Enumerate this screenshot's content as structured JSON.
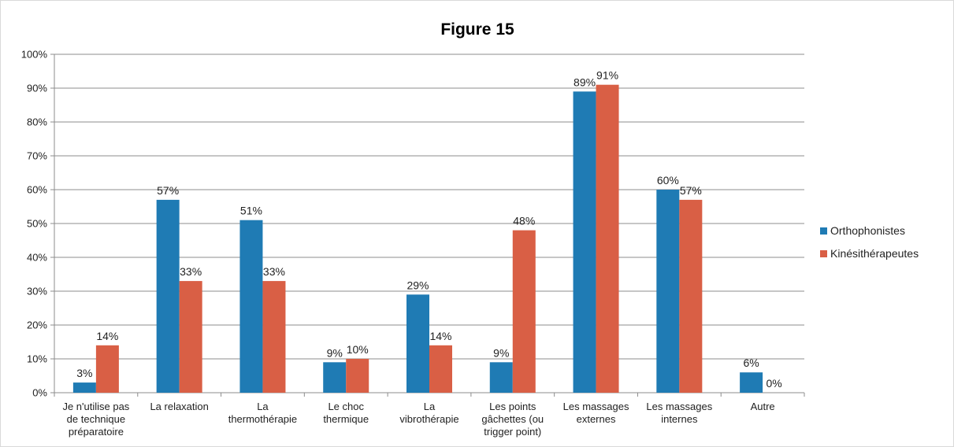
{
  "chart_data": {
    "type": "bar",
    "title": "Figure 15",
    "categories": [
      [
        "Je n'utilise pas",
        "de technique",
        "préparatoire"
      ],
      [
        "La relaxation"
      ],
      [
        "La",
        "thermothérapie"
      ],
      [
        "Le choc",
        "thermique"
      ],
      [
        "La",
        "vibrothérapie"
      ],
      [
        "Les points",
        "gâchettes (ou",
        "trigger point)"
      ],
      [
        "Les massages",
        "externes"
      ],
      [
        "Les massages",
        "internes"
      ],
      [
        "Autre"
      ]
    ],
    "series": [
      {
        "name": "Orthophonistes",
        "color": "#1f7bb4",
        "values": [
          3,
          57,
          51,
          9,
          29,
          9,
          89,
          60,
          6
        ],
        "labels": [
          "3%",
          "57%",
          "51%",
          "9%",
          "29%",
          "9%",
          "89%",
          "60%",
          "6%"
        ]
      },
      {
        "name": "Kinésithérapeutes",
        "color": "#d95f45",
        "values": [
          14,
          33,
          33,
          10,
          14,
          48,
          91,
          57,
          0
        ],
        "labels": [
          "14%",
          "33%",
          "33%",
          "10%",
          "14%",
          "48%",
          "91%",
          "57%",
          "0%"
        ]
      }
    ],
    "ylim": [
      0,
      100
    ],
    "yticks": [
      0,
      10,
      20,
      30,
      40,
      50,
      60,
      70,
      80,
      90,
      100
    ],
    "ytick_labels": [
      "0%",
      "10%",
      "20%",
      "30%",
      "40%",
      "50%",
      "60%",
      "70%",
      "80%",
      "90%",
      "100%"
    ],
    "grid": true,
    "legend_position": "right"
  }
}
